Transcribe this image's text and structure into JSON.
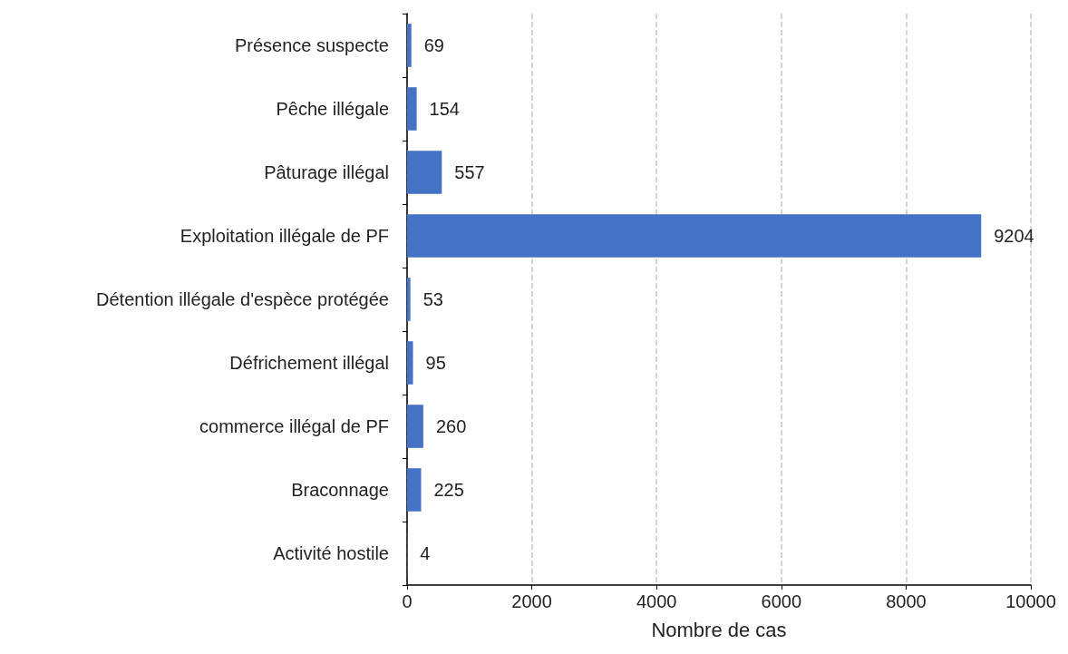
{
  "chart_data": {
    "type": "bar",
    "orientation": "horizontal",
    "categories": [
      "Présence suspecte",
      "Pêche illégale",
      "Pâturage illégal",
      "Exploitation illégale de PF",
      "Détention illégale d'espèce protégée",
      "Défrichement illégal",
      "commerce illégal de PF",
      "Braconnage",
      "Activité hostile"
    ],
    "values": [
      69,
      154,
      557,
      9204,
      53,
      95,
      260,
      225,
      4
    ],
    "color": "#4472c4",
    "xlabel": "Nombre de cas",
    "xlim": [
      0,
      10000
    ],
    "xticks": [
      0,
      2000,
      4000,
      6000,
      8000,
      10000
    ],
    "grid": "x",
    "data_labels": true
  }
}
